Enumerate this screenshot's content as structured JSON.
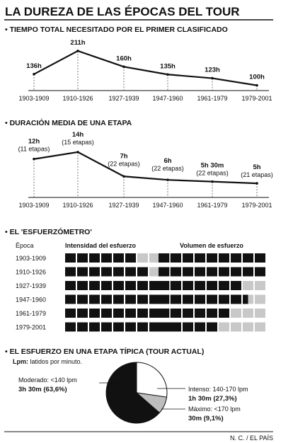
{
  "title": "LA DUREZA DE LAS ÉPOCAS DEL TOUR",
  "credit": "N. C. / EL PAÍS",
  "sections": {
    "s1": "• TIEMPO TOTAL NECESITADO POR EL PRIMER CLASIFICADO",
    "s2": "• DURACIÓN MEDIA DE UNA ETAPA",
    "s3": "• EL 'ESFUERZÓMETRO'",
    "s4": "• EL ESFUERZO EN UNA ETAPA TÍPICA (TOUR ACTUAL)"
  },
  "chart_data": [
    {
      "type": "line",
      "title": "TIEMPO TOTAL NECESITADO POR EL PRIMER CLASIFICADO",
      "categories": [
        "1903-1909",
        "1910-1926",
        "1927-1939",
        "1947-1960",
        "1961-1979",
        "1979-2001"
      ],
      "values": [
        136,
        211,
        160,
        135,
        123,
        100
      ],
      "value_labels": [
        "136h",
        "211h",
        "160h",
        "135h",
        "123h",
        "100h"
      ],
      "ylim": [
        90,
        220
      ]
    },
    {
      "type": "line",
      "title": "DURACIÓN MEDIA DE UNA ETAPA",
      "categories": [
        "1903-1909",
        "1910-1926",
        "1927-1939",
        "1947-1960",
        "1961-1979",
        "1979-2001"
      ],
      "values": [
        12,
        14,
        7,
        6,
        5.5,
        5
      ],
      "value_labels": [
        "12h",
        "14h",
        "7h",
        "6h",
        "5h 30m",
        "5h"
      ],
      "sub_labels": [
        "(11 etapas)",
        "(15 etapas)",
        "(22 etapas)",
        "(22 etapas)",
        "(22 etapas)",
        "(21 etapas)"
      ],
      "ylim": [
        4,
        15
      ]
    },
    {
      "type": "table",
      "title": "EL 'ESFUERZÓMETRO'",
      "col_header": "Época",
      "metrics": [
        "Intensidad del esfuerzo",
        "Volumen de esfuerzo"
      ],
      "max_blocks": 9,
      "rows": [
        {
          "epoca": "1903-1909",
          "intensidad": 6,
          "volumen": 9
        },
        {
          "epoca": "1910-1926",
          "intensidad": 7,
          "volumen": 9
        },
        {
          "epoca": "1927-1939",
          "intensidad": 8,
          "volumen": 7
        },
        {
          "epoca": "1947-1960",
          "intensidad": 8,
          "volumen": 7.5
        },
        {
          "epoca": "1961-1979",
          "intensidad": 8.5,
          "volumen": 6
        },
        {
          "epoca": "1979-2001",
          "intensidad": 9,
          "volumen": 5
        }
      ]
    },
    {
      "type": "pie",
      "title": "EL ESFUERZO EN UNA ETAPA TÍPICA (TOUR ACTUAL)",
      "note_bold": "Lpm:",
      "note_text": " latidos por minuto.",
      "slices": [
        {
          "name": "Moderado: <140 lpm",
          "value_text": "3h 30m (63,6%)",
          "value": 63.6,
          "color": "#111111"
        },
        {
          "name": "Intenso: 140-170 lpm",
          "value_text": "1h 30m (27,3%)",
          "value": 27.3,
          "color": "#ffffff"
        },
        {
          "name": "Máximo: <170 lpm",
          "value_text": "30m (9,1%)",
          "value": 9.1,
          "color": "#bdbdbd"
        }
      ]
    }
  ]
}
